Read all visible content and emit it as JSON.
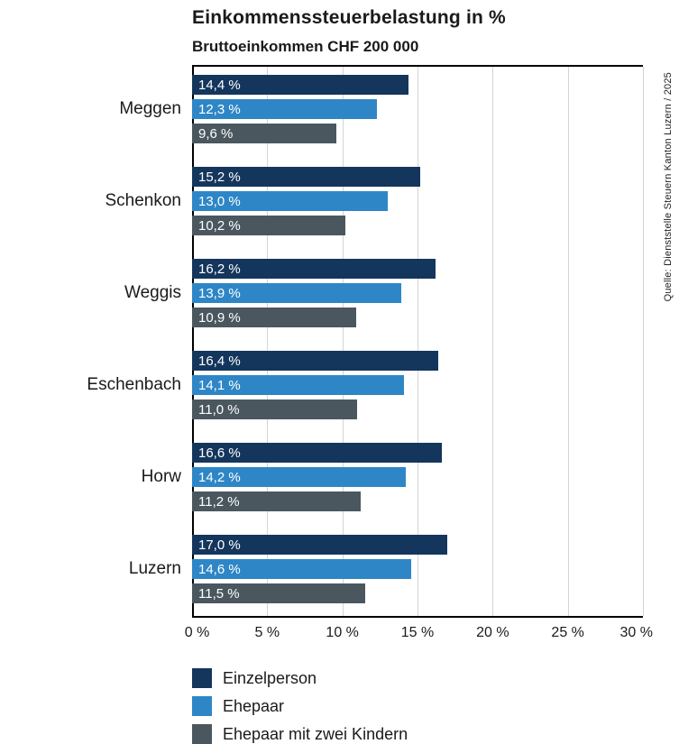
{
  "chart_data": {
    "type": "bar",
    "orientation": "horizontal",
    "title": "Einkommenssteuerbelastung in %",
    "subtitle": "Bruttoeinkommen CHF 200 000",
    "source": "Quelle: Dienststelle Steuern Kanton Luzern / 2025",
    "categories": [
      "Meggen",
      "Schenkon",
      "Weggis",
      "Eschenbach",
      "Horw",
      "Luzern"
    ],
    "series": [
      {
        "name": "Einzelperson",
        "color": "#14365c",
        "values": [
          14.4,
          15.2,
          16.2,
          16.4,
          16.6,
          17.0
        ],
        "labels": [
          "14,4 %",
          "15,2 %",
          "16,2 %",
          "16,4 %",
          "16,6 %",
          "17,0 %"
        ]
      },
      {
        "name": "Ehepaar",
        "color": "#2e86c6",
        "values": [
          12.3,
          13.0,
          13.9,
          14.1,
          14.2,
          14.6
        ],
        "labels": [
          "12,3 %",
          "13,0 %",
          "13,9 %",
          "14,1 %",
          "14,2 %",
          "14,6 %"
        ]
      },
      {
        "name": "Ehepaar mit zwei Kindern",
        "color": "#4b575f",
        "values": [
          9.6,
          10.2,
          10.9,
          11.0,
          11.2,
          11.5
        ],
        "labels": [
          "9,6 %",
          "10,2 %",
          "10,9 %",
          "11,0 %",
          "11,2 %",
          "11,5 %"
        ]
      }
    ],
    "x_axis": {
      "min": 0,
      "max": 30,
      "ticks": [
        0,
        5,
        10,
        15,
        20,
        25,
        30
      ],
      "tick_labels": [
        "0 %",
        "5 %",
        "10 %",
        "15 %",
        "20 %",
        "25 %",
        "30 %"
      ]
    },
    "grid": true,
    "legend_position": "bottom"
  }
}
